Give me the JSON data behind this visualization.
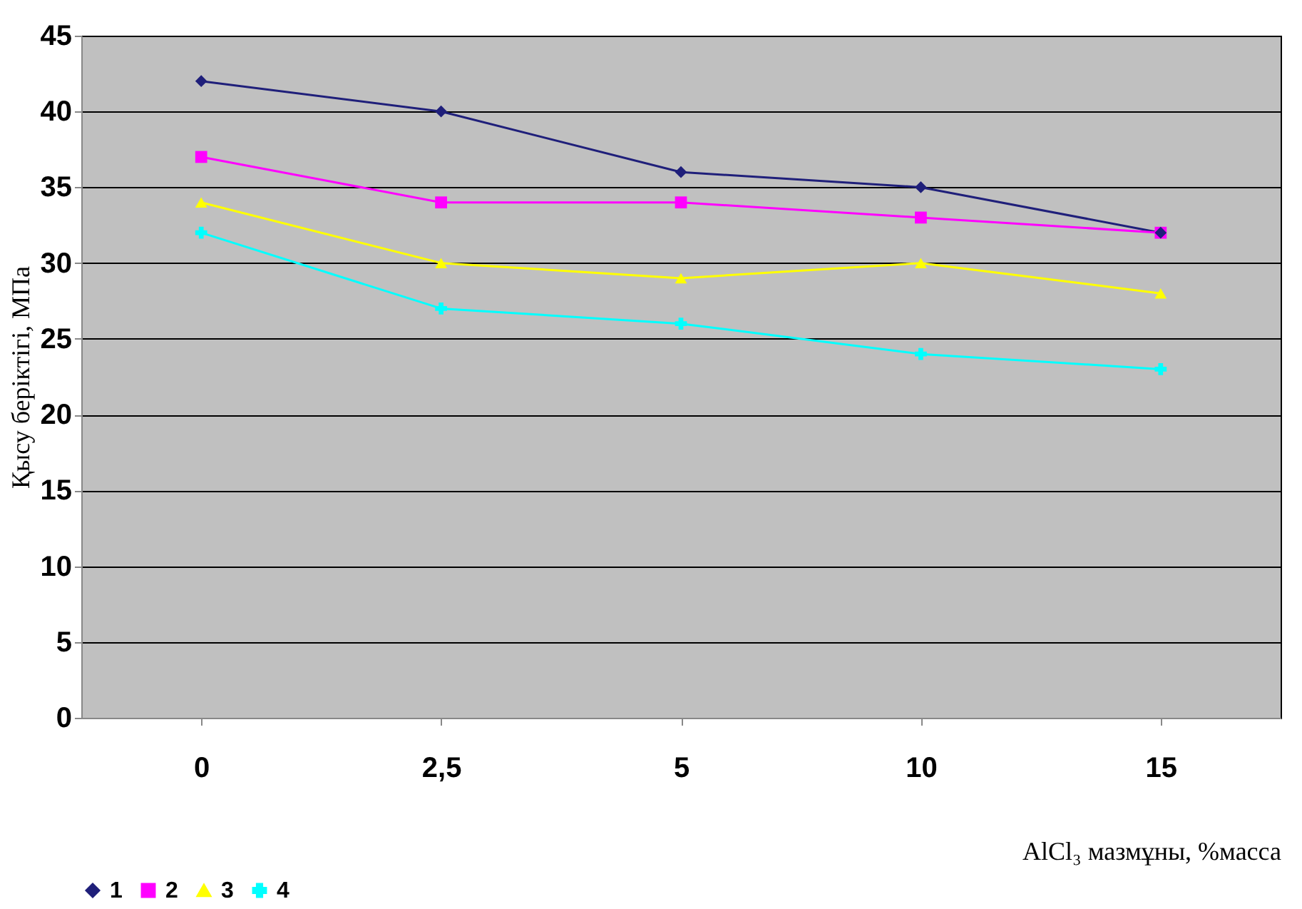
{
  "chart_data": {
    "type": "line",
    "xlabel": "AlCl₃ мазмұны, %масса",
    "ylabel": "Қысу беріктігі, МПа",
    "categories": [
      "0",
      "2,5",
      "5",
      "10",
      "15"
    ],
    "series": [
      {
        "name": "1",
        "color": "#1f1f7a",
        "marker": "diamond",
        "values": [
          42,
          40,
          36,
          35,
          32
        ]
      },
      {
        "name": "2",
        "color": "#ff00ff",
        "marker": "square",
        "values": [
          37,
          34,
          34,
          33,
          32
        ]
      },
      {
        "name": "3",
        "color": "#ffff00",
        "marker": "triangle",
        "values": [
          34,
          30,
          29,
          30,
          28
        ]
      },
      {
        "name": "4",
        "color": "#00ffff",
        "marker": "cross",
        "values": [
          32,
          27,
          26,
          24,
          23
        ]
      }
    ],
    "ylim": [
      0,
      45
    ],
    "yticks": [
      0,
      5,
      10,
      15,
      20,
      25,
      30,
      35,
      40,
      45
    ],
    "grid": "y",
    "legend": "bottom left",
    "line_style": "solid"
  }
}
